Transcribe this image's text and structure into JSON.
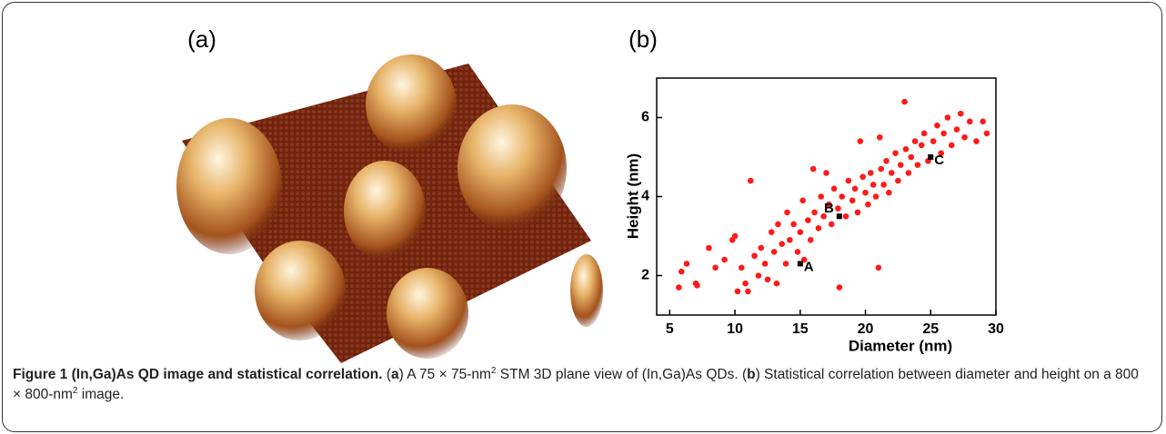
{
  "panels": [
    "(a)",
    "(b)"
  ],
  "chart_data": {
    "type": "scatter",
    "xlabel": "Diameter (nm)",
    "ylabel": "Height (nm)",
    "xlim": [
      4,
      30
    ],
    "ylim": [
      1,
      7
    ],
    "xticks": [
      5,
      10,
      15,
      20,
      25,
      30
    ],
    "yticks": [
      2,
      4,
      6
    ],
    "x": [
      5.7,
      5.9,
      6.3,
      7.0,
      7.1,
      8.0,
      8.5,
      9.2,
      9.8,
      10.0,
      10.2,
      10.5,
      10.8,
      11.0,
      11.2,
      11.5,
      11.8,
      12.0,
      12.3,
      12.5,
      12.8,
      13.0,
      13.2,
      13.3,
      13.6,
      13.9,
      14.0,
      14.2,
      14.5,
      14.8,
      15.0,
      15.2,
      15.3,
      15.6,
      15.8,
      16.0,
      16.1,
      16.4,
      16.6,
      16.8,
      17.0,
      17.2,
      17.4,
      17.6,
      17.9,
      18.0,
      18.2,
      18.5,
      18.7,
      19.0,
      19.2,
      19.4,
      19.6,
      19.8,
      20.0,
      20.2,
      20.4,
      20.6,
      20.8,
      21.0,
      21.1,
      21.2,
      21.4,
      21.6,
      21.8,
      22.0,
      22.3,
      22.5,
      22.7,
      23.0,
      23.1,
      23.3,
      23.5,
      23.8,
      24.0,
      24.3,
      24.5,
      24.8,
      25.2,
      25.5,
      25.8,
      26.0,
      26.3,
      26.6,
      27.0,
      27.3,
      27.6,
      28.0,
      28.5,
      29.0,
      29.3
    ],
    "series": [
      {
        "color": "#ff1a1a",
        "values": [
          1.7,
          2.1,
          2.3,
          1.8,
          1.75,
          2.7,
          2.2,
          2.4,
          2.9,
          3.0,
          1.6,
          2.2,
          1.8,
          1.6,
          4.4,
          2.5,
          2.0,
          2.7,
          2.3,
          1.9,
          3.1,
          2.6,
          1.8,
          3.3,
          2.8,
          2.3,
          3.6,
          2.9,
          3.3,
          2.6,
          3.1,
          3.9,
          2.4,
          3.4,
          2.9,
          4.7,
          3.6,
          3.2,
          4.0,
          3.5,
          4.6,
          3.8,
          3.3,
          4.2,
          3.7,
          1.7,
          4.0,
          3.5,
          4.4,
          3.9,
          4.2,
          3.6,
          5.4,
          4.5,
          4.1,
          3.8,
          4.6,
          4.3,
          4.0,
          2.2,
          5.5,
          4.7,
          4.3,
          4.9,
          4.1,
          4.6,
          5.1,
          4.4,
          4.8,
          6.4,
          5.2,
          4.6,
          5.0,
          5.4,
          4.8,
          5.3,
          5.6,
          4.9,
          5.4,
          5.8,
          5.1,
          5.6,
          6.0,
          5.3,
          5.7,
          6.1,
          5.5,
          5.9,
          5.4,
          5.9,
          5.6
        ]
      }
    ],
    "points": [
      {
        "label": "A",
        "x": 15,
        "y": 2.3,
        "color": "#000000"
      },
      {
        "label": "B",
        "x": 18,
        "y": 3.5,
        "color": "#000000"
      },
      {
        "label": "C",
        "x": 25,
        "y": 5.0,
        "color": "#000000"
      }
    ]
  },
  "caption": {
    "title": "Figure 1 (In,Ga)As QD image and statistical correlation.",
    "segments": [
      "(",
      "a",
      ") A 75 × 75-nm",
      "2",
      " STM 3D plane view of (In,Ga)As QDs. (",
      "b",
      ") Statistical correlation between diameter and height on a 800 × 800-nm",
      "2",
      " image."
    ]
  }
}
